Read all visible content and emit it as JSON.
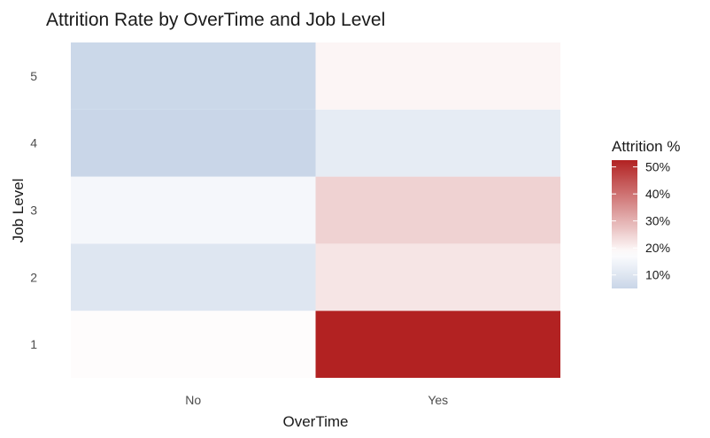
{
  "chart_data": {
    "type": "heatmap",
    "title": "Attrition Rate by OverTime and Job Level",
    "xlabel": "OverTime",
    "ylabel": "Job Level",
    "x_categories": [
      "No",
      "Yes"
    ],
    "y_categories": [
      "1",
      "2",
      "3",
      "4",
      "5"
    ],
    "cells": [
      {
        "x": "No",
        "y": "1",
        "value": 18.5
      },
      {
        "x": "Yes",
        "y": "1",
        "value": 52.5
      },
      {
        "x": "No",
        "y": "2",
        "value": 10.0
      },
      {
        "x": "Yes",
        "y": "2",
        "value": 22.0
      },
      {
        "x": "No",
        "y": "3",
        "value": 15.5
      },
      {
        "x": "Yes",
        "y": "3",
        "value": 25.0
      },
      {
        "x": "No",
        "y": "4",
        "value": 5.0
      },
      {
        "x": "Yes",
        "y": "4",
        "value": 12.0
      },
      {
        "x": "No",
        "y": "5",
        "value": 5.5
      },
      {
        "x": "Yes",
        "y": "5",
        "value": 19.5
      }
    ],
    "legend": {
      "title": "Attrition %",
      "position": "right",
      "ticks": [
        10,
        20,
        30,
        40,
        50
      ],
      "tick_labels": [
        "10%",
        "20%",
        "30%",
        "40%",
        "50%"
      ],
      "range": [
        5,
        52.5
      ]
    },
    "colors": {
      "low": "#c9d6e8",
      "mid": "#ffffff",
      "high": "#b22222",
      "midpoint": 18
    },
    "grid": false
  }
}
